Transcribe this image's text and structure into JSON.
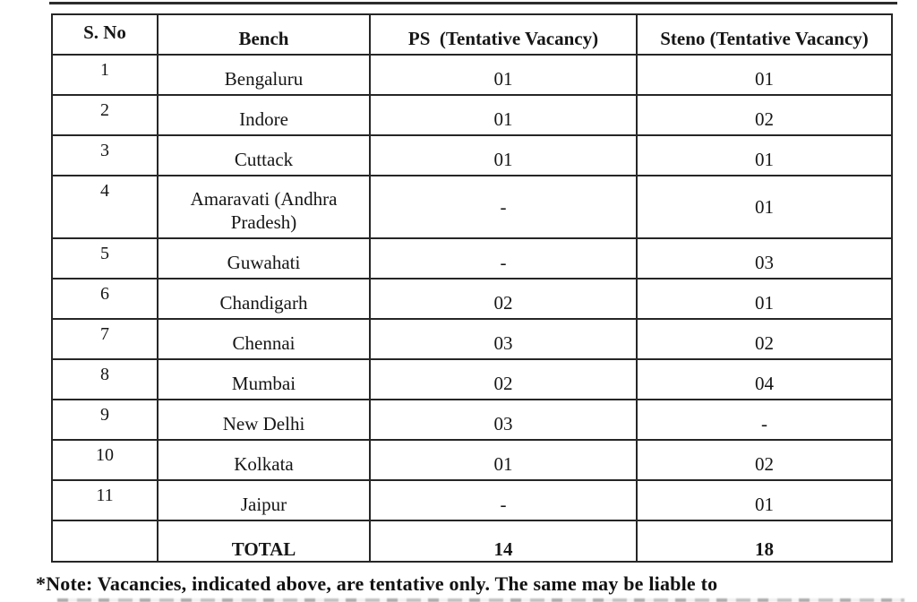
{
  "page": {
    "background_color": "#ffffff",
    "text_color": "#161616",
    "border_color": "#262626"
  },
  "table": {
    "columns": [
      "S. No",
      "Bench",
      "PS  (Tentative Vacancy)",
      "Steno (Tentative Vacancy)"
    ],
    "rows": [
      {
        "sno": "1",
        "bench": "Bengaluru",
        "ps": "01",
        "steno": "01"
      },
      {
        "sno": "2",
        "bench": "Indore",
        "ps": "01",
        "steno": "02"
      },
      {
        "sno": "3",
        "bench": "Cuttack",
        "ps": "01",
        "steno": "01"
      },
      {
        "sno": "4",
        "bench": "Amaravati (Andhra Pradesh)",
        "ps": "-",
        "steno": "01"
      },
      {
        "sno": "5",
        "bench": "Guwahati",
        "ps": "-",
        "steno": "03"
      },
      {
        "sno": "6",
        "bench": "Chandigarh",
        "ps": "02",
        "steno": "01"
      },
      {
        "sno": "7",
        "bench": "Chennai",
        "ps": "03",
        "steno": "02"
      },
      {
        "sno": "8",
        "bench": "Mumbai",
        "ps": "02",
        "steno": "04"
      },
      {
        "sno": "9",
        "bench": "New Delhi",
        "ps": "03",
        "steno": "-"
      },
      {
        "sno": "10",
        "bench": "Kolkata",
        "ps": "01",
        "steno": "02"
      },
      {
        "sno": "11",
        "bench": "Jaipur",
        "ps": "-",
        "steno": "01"
      }
    ],
    "total": {
      "sno": "",
      "label": "TOTAL",
      "ps": "14",
      "steno": "18"
    }
  },
  "note": "*Note: Vacancies, indicated above, are tentative only. The same may be liable to"
}
